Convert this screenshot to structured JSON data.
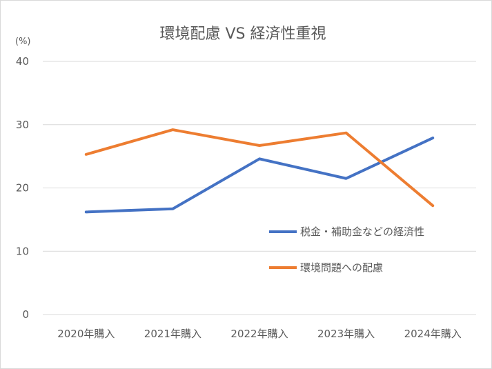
{
  "chart_data": {
    "type": "line",
    "title": "環境配慮 VS 経済性重視",
    "ylabel": "(%)",
    "xlabel": "",
    "categories": [
      "2020年購入",
      "2021年購入",
      "2022年購入",
      "2023年購入",
      "2024年購入"
    ],
    "ylim": [
      0,
      40
    ],
    "yticks": [
      0,
      10,
      20,
      30,
      40
    ],
    "grid": true,
    "legend_placement": "right-middle",
    "series": [
      {
        "name": "税金・補助金などの経済性",
        "color": "#4472c4",
        "values": [
          16.2,
          16.7,
          24.6,
          21.5,
          27.9
        ]
      },
      {
        "name": "環境問題への配慮",
        "color": "#ed7d31",
        "values": [
          25.3,
          29.2,
          26.7,
          28.7,
          17.2
        ]
      }
    ]
  }
}
